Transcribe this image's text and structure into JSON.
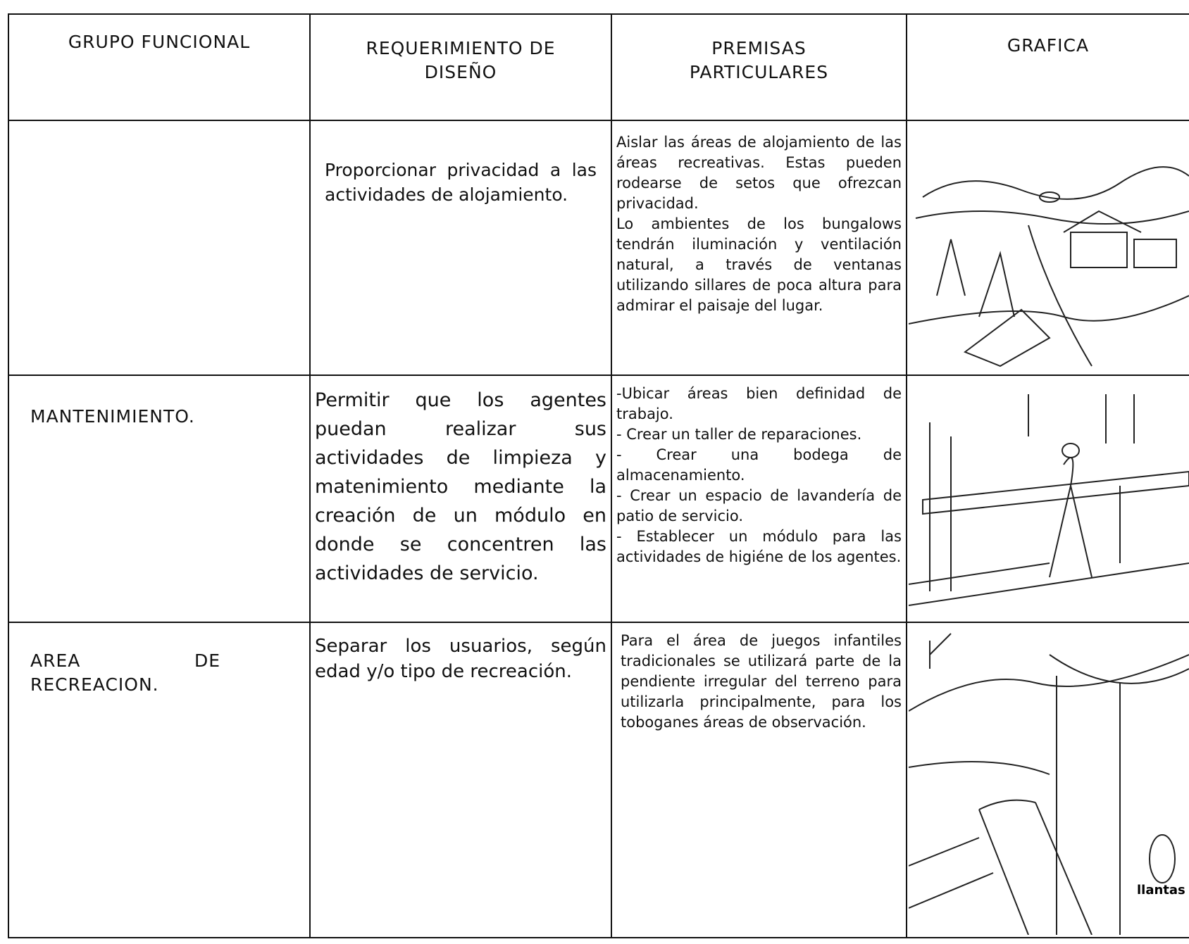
{
  "table": {
    "header": [
      "GRUPO FUNCIONAL",
      "REQUERIMIENTO DE DISEÑO",
      "PREMISAS PARTICULARES",
      "GRAFICA"
    ],
    "rows": [
      {
        "requerimiento": "Proporcionar privacidad a las actividades de alojamiento.",
        "premisas": [
          "Aislar las áreas de alojamiento de las áreas recreativas. Estas pueden rodearse de setos que ofrezcan privacidad.",
          "Lo ambientes de los bungalows tendrán iluminación y ventilación natural, a través de ventanas utilizando sillares de poca altura para admirar el paisaje del lugar."
        ]
      },
      {
        "grupo": "MANTENIMIENTO.",
        "requerimiento": "Permitir que los agentes puedan realizar sus actividades de limpieza y matenimiento mediante la creación de un módulo en donde se concentren las actividades de servicio.",
        "premisas": [
          "-Ubicar áreas bien definidad de trabajo.",
          "- Crear un taller de reparaciones.",
          "- Crear una bodega de almacenamiento.",
          "- Crear un espacio de lavandería de patio de servicio.",
          "- Establecer un módulo para las actividades de higiéne de los agentes."
        ]
      },
      {
        "grupo": "AREA DE RECREACION.",
        "requerimiento": "Separar los usuarios, según edad y/o tipo de recreación.",
        "premisas": [
          "Para el área de juegos infantiles tradicionales se utilizará parte de la pendiente irregular del terreno para utilizarla principalmente, para los toboganes áreas de observación."
        ],
        "grafica_label": "llantas"
      }
    ]
  }
}
